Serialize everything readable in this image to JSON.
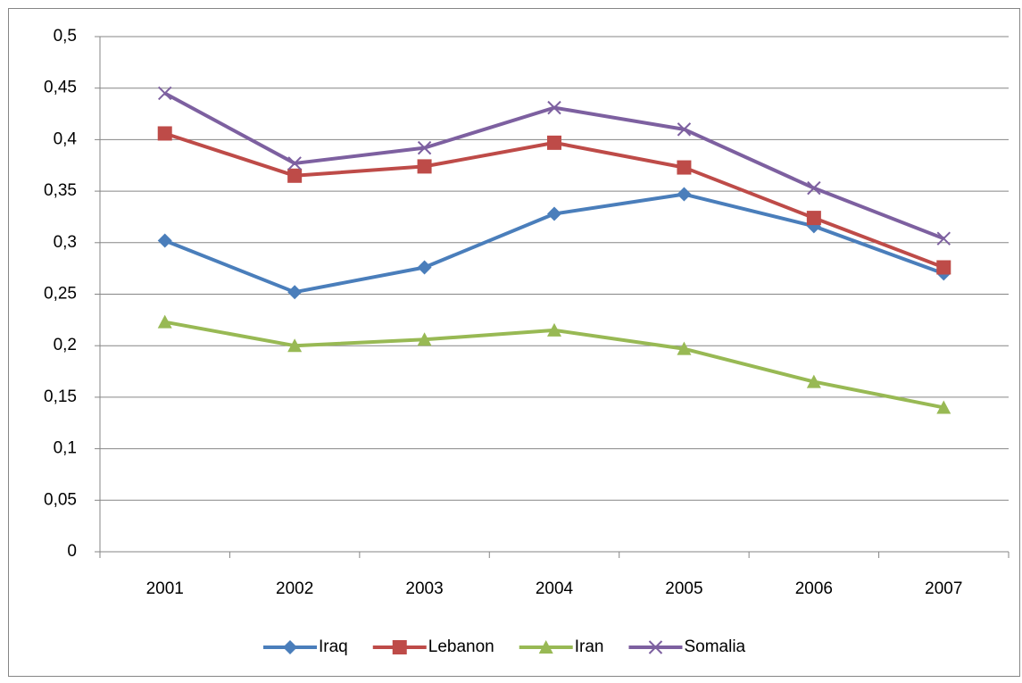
{
  "chart_data": {
    "type": "line",
    "categories": [
      "2001",
      "2002",
      "2003",
      "2004",
      "2005",
      "2006",
      "2007"
    ],
    "series": [
      {
        "name": "Iraq",
        "color": "#4a7ebb",
        "marker": "diamond",
        "values": [
          0.302,
          0.252,
          0.276,
          0.328,
          0.347,
          0.316,
          0.27
        ]
      },
      {
        "name": "Lebanon",
        "color": "#be4b48",
        "marker": "square",
        "values": [
          0.406,
          0.365,
          0.374,
          0.397,
          0.373,
          0.324,
          0.276
        ]
      },
      {
        "name": "Iran",
        "color": "#98b954",
        "marker": "triangle",
        "values": [
          0.223,
          0.2,
          0.206,
          0.215,
          0.197,
          0.165,
          0.14
        ]
      },
      {
        "name": "Somalia",
        "color": "#7d60a0",
        "marker": "x",
        "values": [
          0.445,
          0.377,
          0.392,
          0.431,
          0.41,
          0.353,
          0.304
        ]
      }
    ],
    "ylim": [
      0,
      0.5
    ],
    "yticks": [
      0,
      {
        "value": 0.05,
        "label": "0,05"
      },
      {
        "value": 0.1,
        "label": "0,1"
      },
      {
        "value": 0.15,
        "label": "0,15"
      },
      {
        "value": 0.2,
        "label": "0,2"
      },
      {
        "value": 0.25,
        "label": "0,25"
      },
      {
        "value": 0.3,
        "label": "0,3"
      },
      {
        "value": 0.35,
        "label": "0,35"
      },
      {
        "value": 0.4,
        "label": "0,4"
      },
      {
        "value": 0.45,
        "label": "0,45"
      },
      {
        "value": 0.5,
        "label": "0,5"
      }
    ],
    "grid": true,
    "legend": "bottom"
  }
}
